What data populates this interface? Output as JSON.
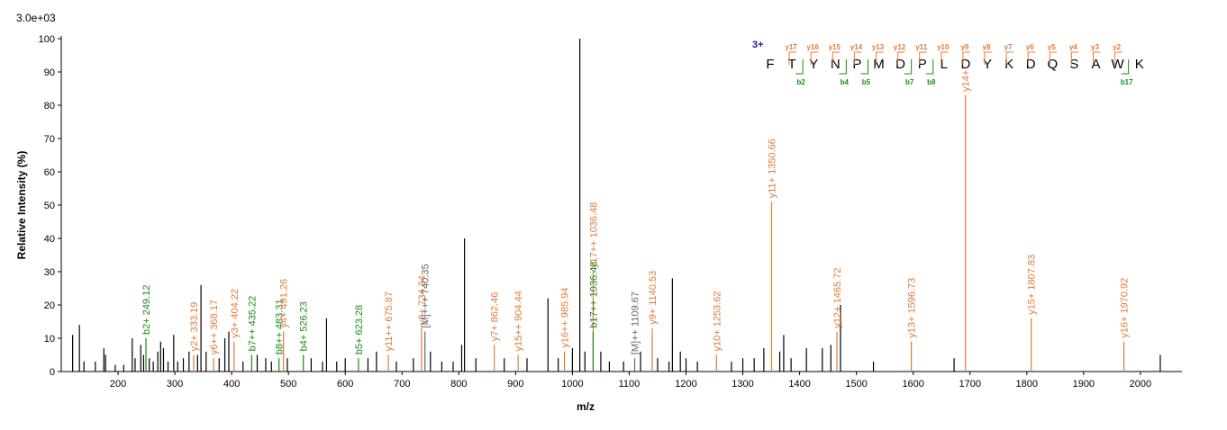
{
  "chart_data": {
    "type": "spectrum",
    "title": "3.0e+03",
    "y_label": "Relative  Intensity (%)",
    "x_label": "m/z",
    "xlim": [
      100,
      2070
    ],
    "ylim": [
      0,
      100
    ],
    "xticks": [
      200,
      300,
      400,
      500,
      600,
      700,
      800,
      900,
      1000,
      1100,
      1200,
      1300,
      1400,
      1500,
      1600,
      1700,
      1800,
      1900,
      2000
    ],
    "yticks": [
      0,
      10,
      20,
      30,
      40,
      50,
      60,
      70,
      80,
      90,
      100
    ],
    "peak_color": "#000000",
    "peaks": {
      "mz": [
        120,
        132,
        140,
        160,
        175,
        178,
        195,
        210,
        225,
        230,
        240,
        245,
        255,
        262,
        270,
        275,
        280,
        288,
        298,
        305,
        315,
        325,
        340,
        346,
        355,
        378,
        388,
        395,
        420,
        445,
        460,
        470,
        498,
        540,
        560,
        567,
        585,
        600,
        640,
        655,
        690,
        720,
        750,
        770,
        790,
        805,
        810,
        830,
        880,
        920,
        957,
        975,
        1000,
        1013,
        1022,
        1050,
        1065,
        1090,
        1120,
        1150,
        1170,
        1176,
        1190,
        1200,
        1220,
        1280,
        1300,
        1320,
        1337,
        1365,
        1372,
        1385,
        1412,
        1440,
        1455,
        1472,
        1530,
        1672,
        2035
      ],
      "intensity": [
        11,
        14,
        3,
        3,
        7,
        5,
        2,
        2,
        10,
        4,
        8,
        5,
        4,
        3,
        6,
        9,
        7,
        3,
        11,
        3,
        4,
        6,
        5,
        26,
        6,
        4,
        10,
        12,
        3,
        5,
        4,
        3,
        4,
        4,
        3,
        16,
        3,
        4,
        4,
        6,
        3,
        4,
        6,
        3,
        3,
        8,
        40,
        4,
        4,
        4,
        22,
        4,
        7,
        100,
        6,
        6,
        3,
        3,
        6,
        4,
        3,
        28,
        6,
        4,
        3,
        3,
        4,
        4,
        7,
        6,
        11,
        4,
        7,
        7,
        8,
        20,
        3,
        4,
        5
      ]
    },
    "annotated": [
      {
        "mz": 249.12,
        "intensity": 10,
        "label": "b2+ 249.12",
        "color": "#1a8a1a"
      },
      {
        "mz": 333.19,
        "intensity": 5,
        "label": "y2+ 333.19",
        "color": "#e07b39"
      },
      {
        "mz": 368.17,
        "intensity": 4,
        "label": "y6++ 368.17",
        "color": "#e07b39"
      },
      {
        "mz": 404.22,
        "intensity": 9,
        "label": "y3+ 404.22",
        "color": "#e07b39"
      },
      {
        "mz": 435.22,
        "intensity": 5,
        "label": "b7++ 435.22",
        "color": "#1a8a1a"
      },
      {
        "mz": 483.31,
        "intensity": 4,
        "label": "b8++ 483.31",
        "color": "#1a8a1a"
      },
      {
        "mz": 491.26,
        "intensity": 12,
        "label": "y4+ 491.26",
        "color": "#e07b39"
      },
      {
        "mz": 526.23,
        "intensity": 5,
        "label": "b4+ 526.23",
        "color": "#1a8a1a"
      },
      {
        "mz": 623.28,
        "intensity": 4,
        "label": "b5+ 623.28",
        "color": "#1a8a1a"
      },
      {
        "mz": 675.87,
        "intensity": 5,
        "label": "y11++ 675.87",
        "color": "#e07b39"
      },
      {
        "mz": 734.34,
        "intensity": 13,
        "label": "y6+ 734.34",
        "color": "#e07b39"
      },
      {
        "mz": 740.35,
        "intensity": 12,
        "label": "[M]+++ 740.35",
        "color": "#666666"
      },
      {
        "mz": 862.46,
        "intensity": 8,
        "label": "y7+ 862.46",
        "color": "#e07b39"
      },
      {
        "mz": 904.44,
        "intensity": 5,
        "label": "y15++ 904.44",
        "color": "#e07b39"
      },
      {
        "mz": 985.94,
        "intensity": 6,
        "label": "y16++ 985.94",
        "color": "#e07b39"
      },
      {
        "mz": 1036.48,
        "intensity": 30,
        "label": "y17++ 1036.48",
        "color": "#e07b39"
      },
      {
        "mz": 1036.48,
        "intensity": 12,
        "label": "b17++ 1036.48",
        "color": "#1a8a1a"
      },
      {
        "mz": 1109.67,
        "intensity": 4,
        "label": "[M]++ 1109.67",
        "color": "#666666"
      },
      {
        "mz": 1140.53,
        "intensity": 13,
        "label": "y9+ 1140.53",
        "color": "#e07b39"
      },
      {
        "mz": 1253.62,
        "intensity": 5,
        "label": "y10+ 1253.62",
        "color": "#e07b39"
      },
      {
        "mz": 1350.66,
        "intensity": 51,
        "label": "y11+ 1350.66",
        "color": "#e07b39"
      },
      {
        "mz": 1465.72,
        "intensity": 12,
        "label": "y12+ 1465.72",
        "color": "#e07b39"
      },
      {
        "mz": 1596.73,
        "intensity": 9,
        "label": "y13+ 1596.73",
        "color": "#e07b39"
      },
      {
        "mz": 1692,
        "intensity": 83,
        "label": "y14+",
        "color": "#e07b39"
      },
      {
        "mz": 1807.83,
        "intensity": 16,
        "label": "y15+ 1807.83",
        "color": "#e07b39"
      },
      {
        "mz": 1970.92,
        "intensity": 9,
        "label": "y16+ 1970.92",
        "color": "#e07b39"
      }
    ],
    "sequence": {
      "charge": "3+",
      "residues": [
        "F",
        "T",
        "Y",
        "N",
        "P",
        "M",
        "D",
        "P",
        "L",
        "D",
        "Y",
        "K",
        "D",
        "Q",
        "S",
        "A",
        "W",
        "K"
      ],
      "y_ions": [
        "y17",
        "y16",
        "y15",
        "y14",
        "y13",
        "y12",
        "y11",
        "y10",
        "y9",
        "y8",
        "y7",
        "y6",
        "y5",
        "y4",
        "y3",
        "y2",
        null
      ],
      "b_ions": [
        null,
        "b2",
        null,
        "b4",
        "b5",
        null,
        "b7",
        "b8",
        null,
        null,
        null,
        null,
        null,
        null,
        null,
        null,
        "b17"
      ]
    }
  }
}
